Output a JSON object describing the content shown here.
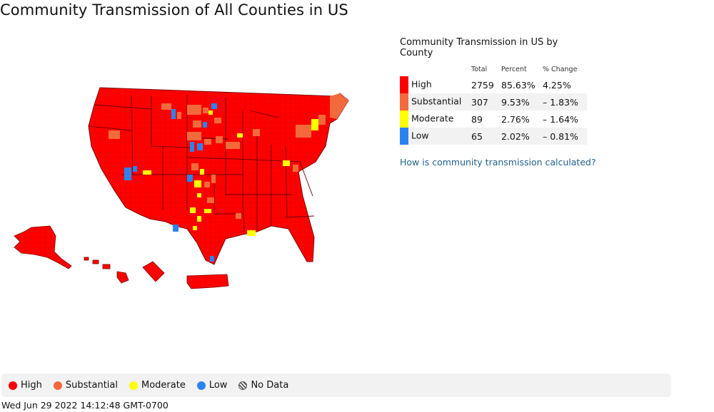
{
  "page": {
    "title": "Community Transmission of All Counties in US",
    "timestamp": "Wed Jun 29 2022 14:12:48 GMT-0700"
  },
  "summary": {
    "title": "Community Transmission in US by County",
    "headers": {
      "total": "Total",
      "percent": "Percent",
      "change": "% Change"
    },
    "rows": [
      {
        "label": "High",
        "total": "2759",
        "percent": "85.63%",
        "change": "4.25%",
        "color": "#ff0000"
      },
      {
        "label": "Substantial",
        "total": "307",
        "percent": "9.53%",
        "change": "– 1.83%",
        "color": "#f26a3c"
      },
      {
        "label": "Moderate",
        "total": "89",
        "percent": "2.76%",
        "change": "– 1.64%",
        "color": "#ffff00"
      },
      {
        "label": "Low",
        "total": "65",
        "percent": "2.02%",
        "change": "– 0.81%",
        "color": "#2c83f0"
      }
    ],
    "link_text": "How is community transmission calculated?"
  },
  "legend": {
    "items": [
      {
        "label": "High",
        "color": "#ff0000"
      },
      {
        "label": "Substantial",
        "color": "#f26a3c"
      },
      {
        "label": "Moderate",
        "color": "#ffff00"
      },
      {
        "label": "Low",
        "color": "#2c83f0"
      },
      {
        "label": "No Data",
        "pattern": "hatched"
      }
    ]
  },
  "map": {
    "colors": {
      "high": "#ff0000",
      "substantial": "#f26a3c",
      "moderate": "#ffff00",
      "low": "#2c83f0",
      "border": "#7a0000"
    }
  }
}
